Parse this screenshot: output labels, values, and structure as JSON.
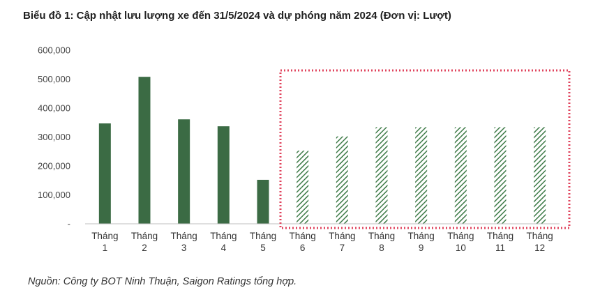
{
  "title": "Biểu đồ 1: Cập nhật lưu lượng xe đến 31/5/2024 và dự phóng năm 2024 (Đơn vị: Lượt)",
  "source": "Nguồn: Công ty BOT Ninh Thuận, Saigon Ratings tổng hợp.",
  "chart_data": {
    "type": "bar",
    "title": "Biểu đồ 1: Cập nhật lưu lượng xe đến 31/5/2024 và dự phóng năm 2024 (Đơn vị: Lượt)",
    "categories": [
      [
        "Tháng",
        "1"
      ],
      [
        "Tháng",
        "2"
      ],
      [
        "Tháng",
        "3"
      ],
      [
        "Tháng",
        "4"
      ],
      [
        "Tháng",
        "5"
      ],
      [
        "Tháng",
        "6"
      ],
      [
        "Tháng",
        "7"
      ],
      [
        "Tháng",
        "8"
      ],
      [
        "Tháng",
        "9"
      ],
      [
        "Tháng",
        "10"
      ],
      [
        "Tháng",
        "11"
      ],
      [
        "Tháng",
        "12"
      ]
    ],
    "values": [
      347000,
      508000,
      361000,
      337000,
      152000,
      253000,
      302000,
      334000,
      334000,
      334000,
      334000,
      334000
    ],
    "forecast_from_index": 5,
    "ylim": [
      0,
      600000
    ],
    "yticks": [
      0,
      100000,
      200000,
      300000,
      400000,
      500000,
      600000
    ],
    "ytick_labels": [
      "-",
      "100,000",
      "200,000",
      "300,000",
      "400,000",
      "500,000",
      "600,000"
    ],
    "grid": false,
    "colors": {
      "actual": "#3b6b44",
      "forecast_stripe": "#3d7a47",
      "forecast_box": "#e0445e",
      "axis": "#bfbfbf"
    }
  }
}
